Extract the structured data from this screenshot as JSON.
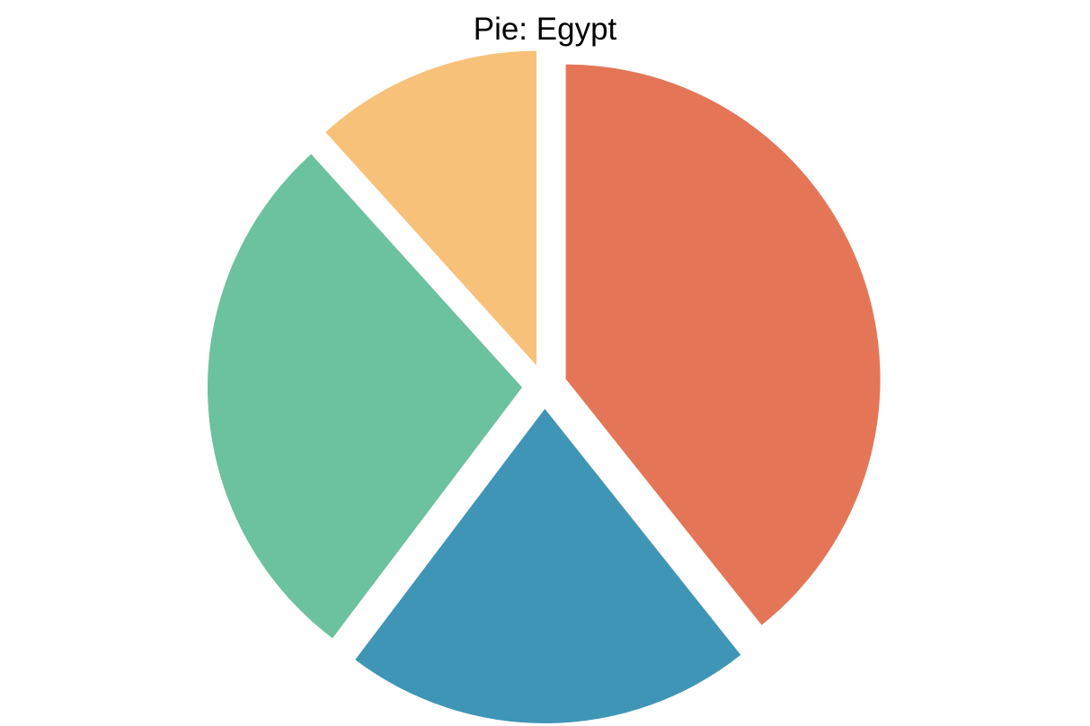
{
  "chart_data": {
    "type": "pie",
    "title": "Pie: Egypt",
    "slices": [
      {
        "value": 39.3,
        "color": "#E47657"
      },
      {
        "value": 21.0,
        "color": "#3F95B6"
      },
      {
        "value": 28.0,
        "color": "#6CC19F"
      },
      {
        "value": 11.7,
        "color": "#F8C179"
      }
    ],
    "start_angle": 90,
    "direction": "clockwise",
    "exploded": true,
    "labels_shown": false,
    "legend": "none"
  }
}
